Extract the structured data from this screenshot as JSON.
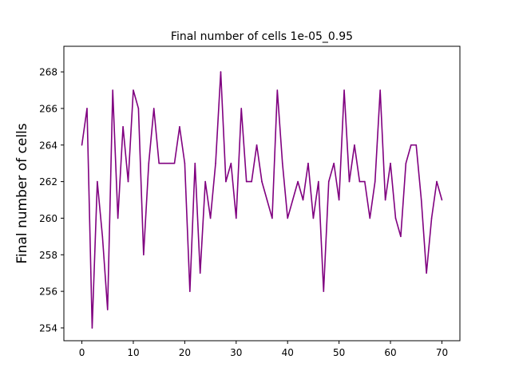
{
  "chart_data": {
    "type": "line",
    "title": "Final number of cells 1e-05_0.95",
    "xlabel": "",
    "ylabel": "Final number of cells",
    "xlim": [
      -3.5,
      73.5
    ],
    "ylim": [
      253.3,
      269.4
    ],
    "xticks": [
      0,
      10,
      20,
      30,
      40,
      50,
      60,
      70
    ],
    "yticks": [
      254,
      256,
      258,
      260,
      262,
      264,
      266,
      268
    ],
    "grid": false,
    "legend": "none",
    "series": [
      {
        "color": "#800080",
        "x": [
          0,
          1,
          2,
          3,
          4,
          5,
          6,
          7,
          8,
          9,
          10,
          11,
          12,
          13,
          14,
          15,
          16,
          17,
          18,
          19,
          20,
          21,
          22,
          23,
          24,
          25,
          26,
          27,
          28,
          29,
          30,
          31,
          32,
          33,
          34,
          35,
          36,
          37,
          38,
          39,
          40,
          41,
          42,
          43,
          44,
          45,
          46,
          47,
          48,
          49,
          50,
          51,
          52,
          53,
          54,
          55,
          56,
          57,
          58,
          59,
          60,
          61,
          62,
          63,
          64,
          65,
          66,
          67,
          68,
          69,
          70
        ],
        "values": [
          264,
          266,
          254,
          262,
          259,
          255,
          267,
          260,
          265,
          262,
          267,
          266,
          258,
          263,
          266,
          263,
          263,
          263,
          263,
          265,
          263,
          256,
          263,
          257,
          262,
          260,
          263,
          268,
          262,
          263,
          260,
          266,
          262,
          262,
          264,
          262,
          261,
          260,
          267,
          263,
          260,
          261,
          262,
          261,
          263,
          260,
          262,
          256,
          262,
          263,
          261,
          267,
          262,
          264,
          262,
          262,
          260,
          262,
          267,
          261,
          263,
          260,
          259,
          263,
          264,
          264,
          261,
          257,
          260,
          262,
          261
        ]
      }
    ]
  }
}
